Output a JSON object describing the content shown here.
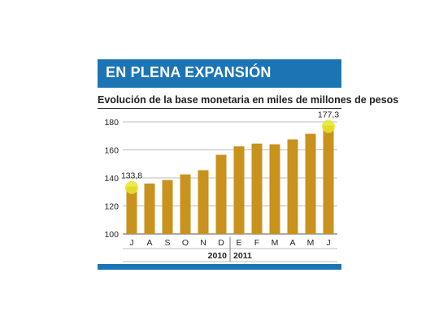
{
  "header": {
    "title": "EN PLENA EXPANSIÓN"
  },
  "colors": {
    "header_bg": "#1b75b4",
    "bar": "#c9921c",
    "highlight": "#e6e82a",
    "grid": "#7a7a7a"
  },
  "chart_data": {
    "type": "bar",
    "title": "",
    "subtitle": "Evolución de la base monetaria en miles de millones de pesos",
    "categories": [
      "J",
      "A",
      "S",
      "O",
      "N",
      "D",
      "E",
      "F",
      "M",
      "A",
      "M",
      "J"
    ],
    "values": [
      133.8,
      136,
      138.5,
      142.5,
      145.5,
      156.5,
      162.5,
      164.5,
      164,
      167.5,
      171.5,
      177.3
    ],
    "data_labels": [
      {
        "index": 0,
        "text": "133,8"
      },
      {
        "index": 11,
        "text": "177,3"
      }
    ],
    "year_labels": [
      {
        "text": "2010",
        "from": 0,
        "to": 5
      },
      {
        "text": "2011",
        "from": 6,
        "to": 11
      }
    ],
    "ylim": [
      100,
      180
    ],
    "yticks": [
      100,
      120,
      140,
      160,
      180
    ],
    "grid": true,
    "xlabel": "",
    "ylabel": ""
  }
}
